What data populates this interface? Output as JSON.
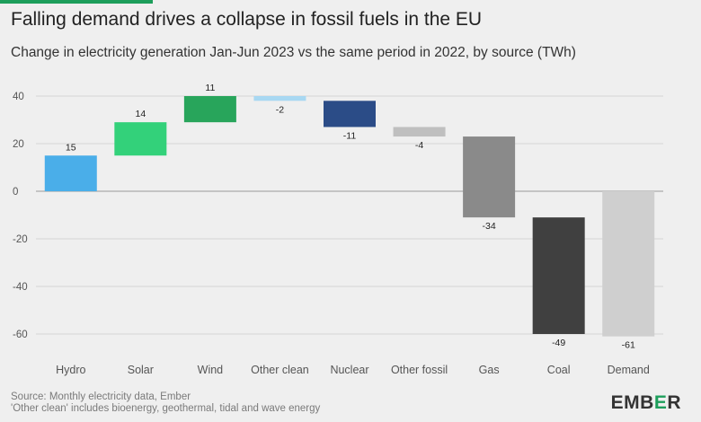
{
  "chart_data": {
    "type": "bar",
    "subtype": "waterfall",
    "title": "Falling demand drives a collapse in fossil fuels in the EU",
    "subtitle": "Change in electricity generation Jan-Jun 2023 vs the same period in 2022, by source (TWh)",
    "categories": [
      "Hydro",
      "Solar",
      "Wind",
      "Other clean",
      "Nuclear",
      "Other fossil",
      "Gas",
      "Coal",
      "Demand"
    ],
    "values": [
      15,
      14,
      11,
      -2,
      -11,
      -4,
      -34,
      -49,
      -61
    ],
    "value_labels": [
      "15",
      "14",
      "11",
      "-2",
      "-11",
      "-4",
      "-34",
      "-49",
      "-61"
    ],
    "colors": [
      "#4aaee9",
      "#33d17a",
      "#28a55b",
      "#a8d8f2",
      "#2b4c87",
      "#bfbfbf",
      "#8a8a8a",
      "#404040",
      "#cfcfcf"
    ],
    "ylim": [
      -65,
      43
    ],
    "yticks": [
      40,
      20,
      0,
      -20,
      -40,
      -60
    ],
    "xlabel": "",
    "ylabel": "",
    "grid": true
  },
  "footer": {
    "source": "Source: Monthly electricity data, Ember",
    "note": "'Other clean' includes bioenergy, geothermal, tidal and wave energy"
  },
  "logo": {
    "prefix": "EMB",
    "accent": "E",
    "suffix": "R"
  }
}
